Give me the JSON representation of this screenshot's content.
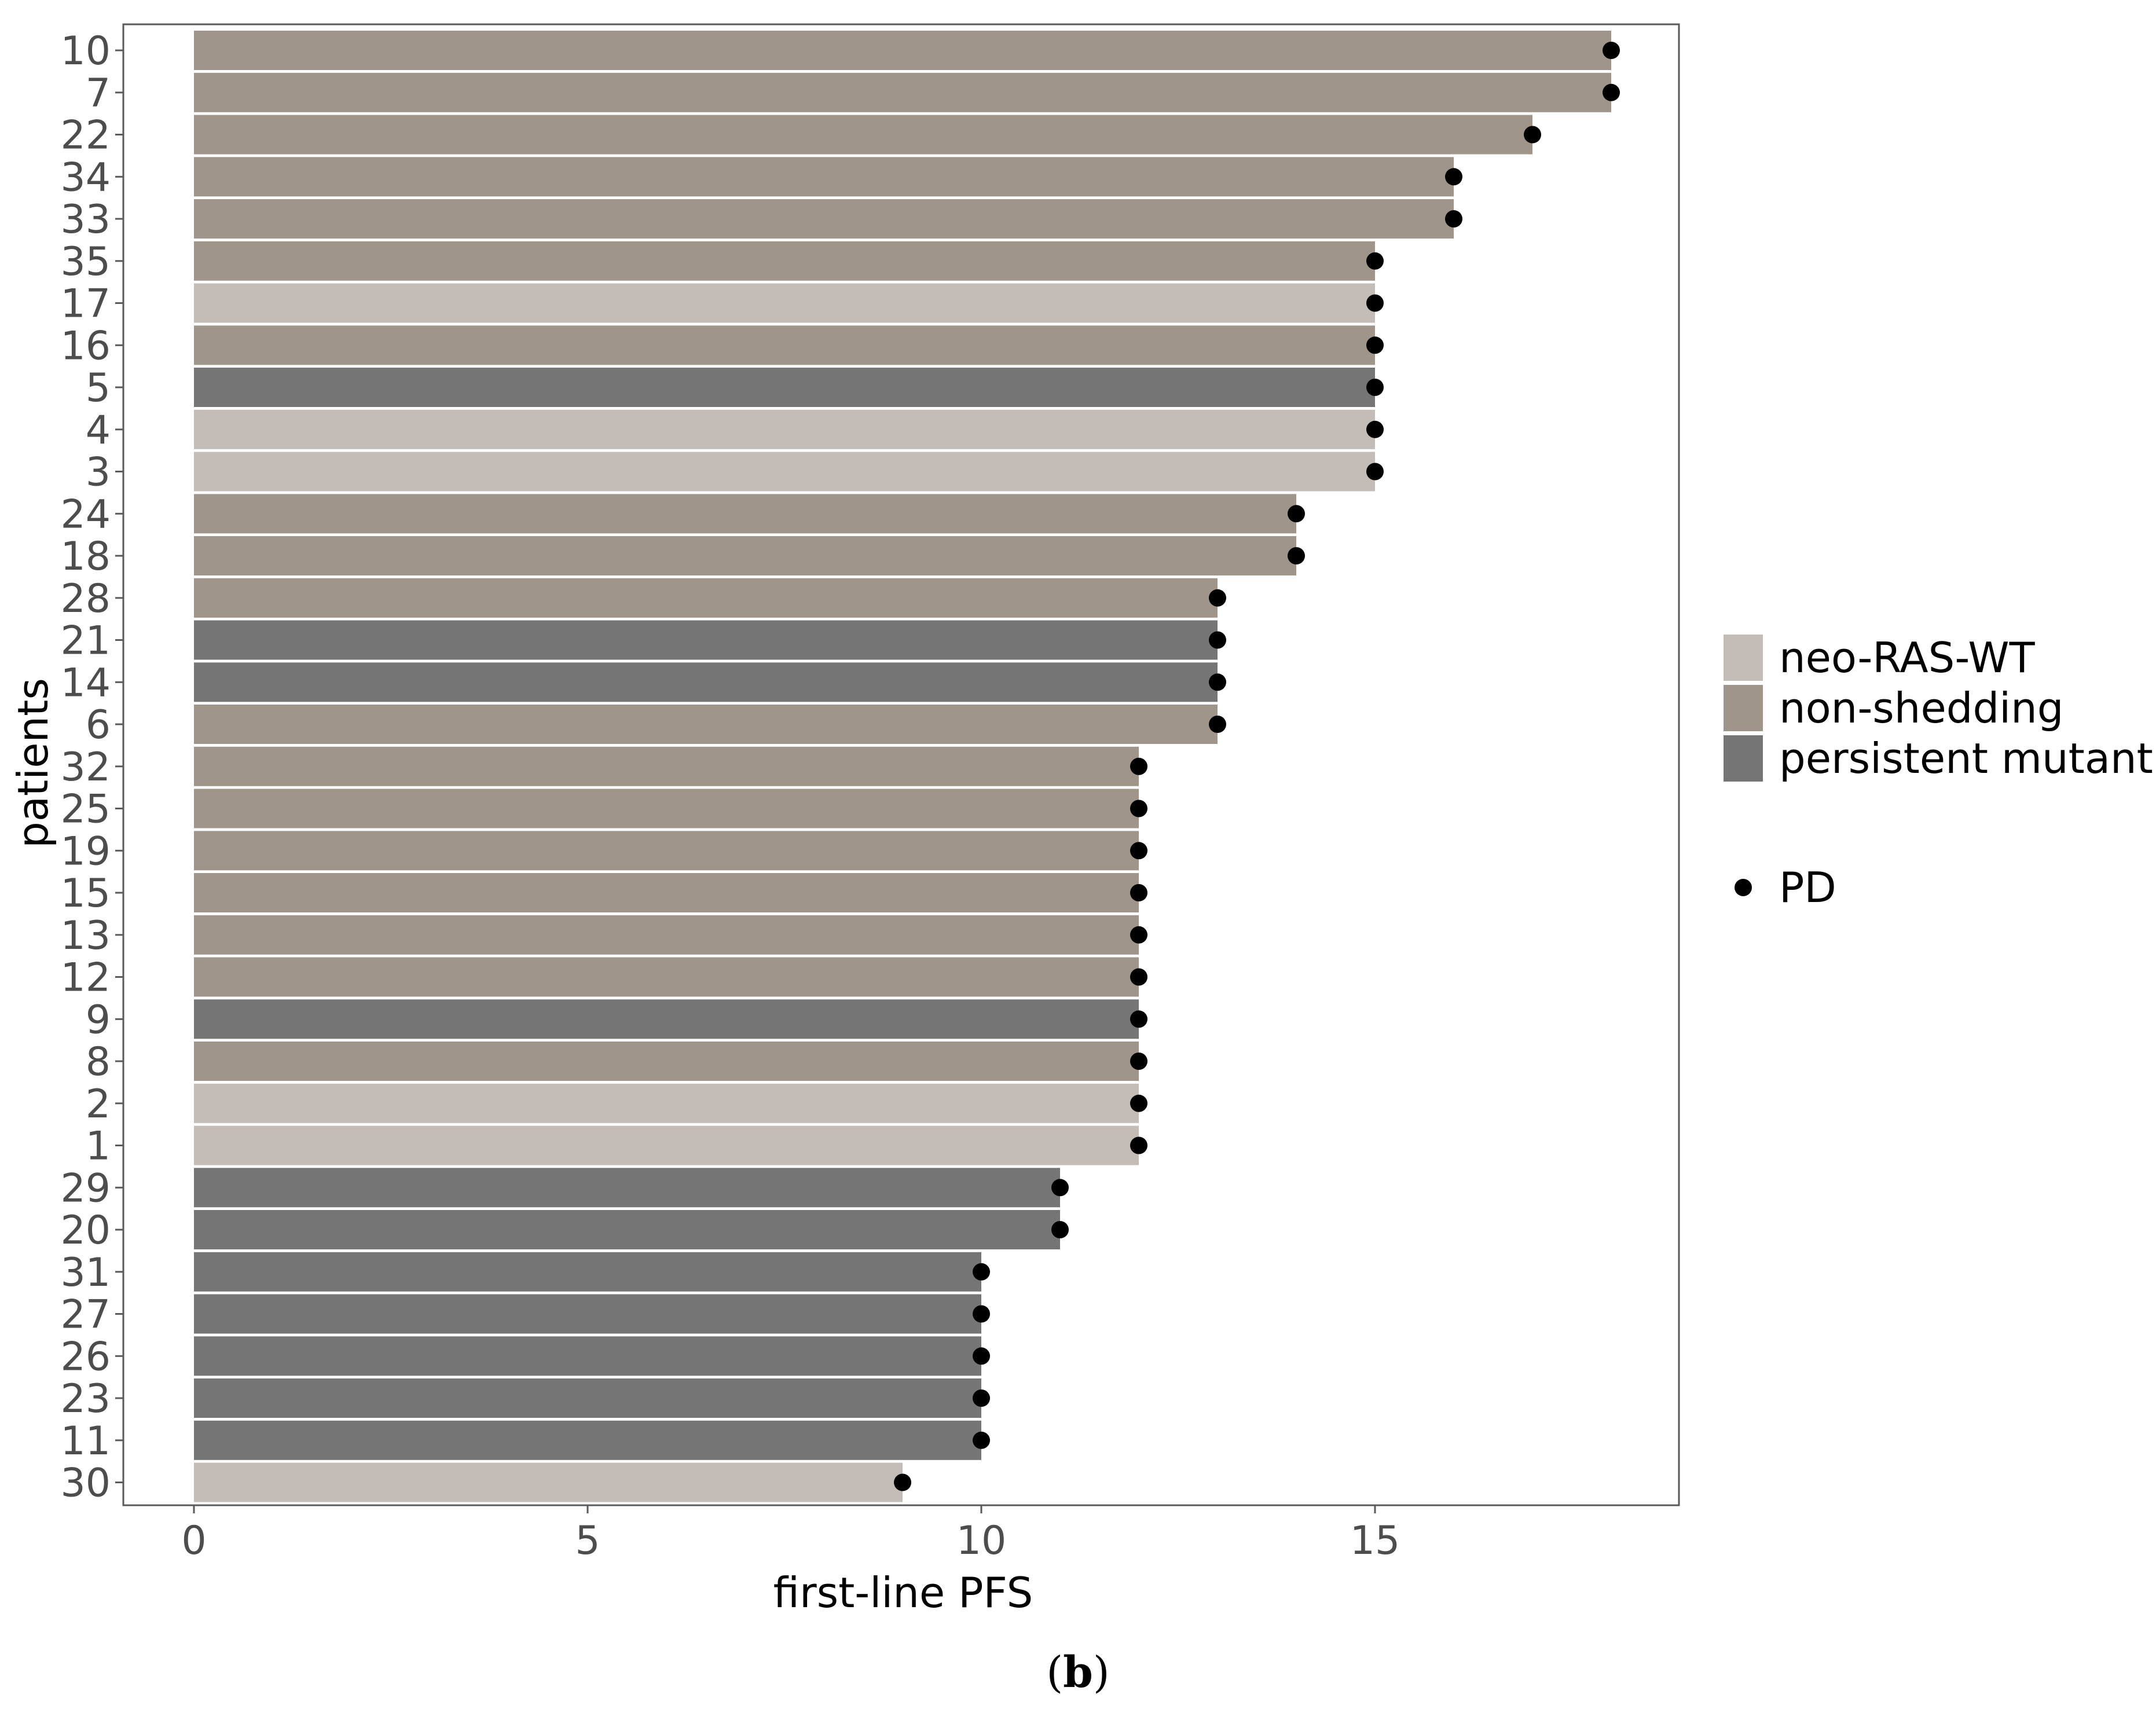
{
  "chart_data": {
    "type": "bar",
    "orientation": "horizontal",
    "xlabel": "first-line PFS",
    "ylabel": "patients",
    "panel_label": {
      "open": "(",
      "letter": "b",
      "close": ")"
    },
    "xlim": [
      -0.9,
      18.9
    ],
    "xticks": [
      0,
      5,
      10,
      15
    ],
    "categories": [
      "10",
      "7",
      "22",
      "34",
      "33",
      "35",
      "17",
      "16",
      "5",
      "4",
      "3",
      "24",
      "18",
      "28",
      "21",
      "14",
      "6",
      "32",
      "25",
      "19",
      "15",
      "13",
      "12",
      "9",
      "8",
      "2",
      "1",
      "29",
      "20",
      "31",
      "27",
      "26",
      "23",
      "11",
      "30"
    ],
    "values": [
      18,
      18,
      17,
      16,
      16,
      15,
      15,
      15,
      15,
      15,
      15,
      14,
      14,
      13,
      13,
      13,
      13,
      12,
      12,
      12,
      12,
      12,
      12,
      12,
      12,
      12,
      12,
      11,
      11,
      10,
      10,
      10,
      10,
      10,
      9
    ],
    "groups": [
      "non-shedding",
      "non-shedding",
      "non-shedding",
      "non-shedding",
      "non-shedding",
      "non-shedding",
      "neo-RAS-WT",
      "non-shedding",
      "persistent mutant",
      "neo-RAS-WT",
      "neo-RAS-WT",
      "non-shedding",
      "non-shedding",
      "non-shedding",
      "persistent mutant",
      "persistent mutant",
      "non-shedding",
      "non-shedding",
      "non-shedding",
      "non-shedding",
      "non-shedding",
      "non-shedding",
      "non-shedding",
      "persistent mutant",
      "non-shedding",
      "neo-RAS-WT",
      "neo-RAS-WT",
      "persistent mutant",
      "persistent mutant",
      "persistent mutant",
      "persistent mutant",
      "persistent mutant",
      "persistent mutant",
      "persistent mutant",
      "neo-RAS-WT"
    ],
    "pd_marker_at_bar_end": true,
    "legend": {
      "placement": "right",
      "fill_entries": [
        {
          "name": "neo-RAS-WT",
          "color": "#c4bcb6"
        },
        {
          "name": "non-shedding",
          "color": "#a0958b"
        },
        {
          "name": "persistent mutant",
          "color": "#757575"
        }
      ],
      "marker_entry": {
        "name": "PD",
        "color": "#000000"
      }
    },
    "grid": false
  }
}
